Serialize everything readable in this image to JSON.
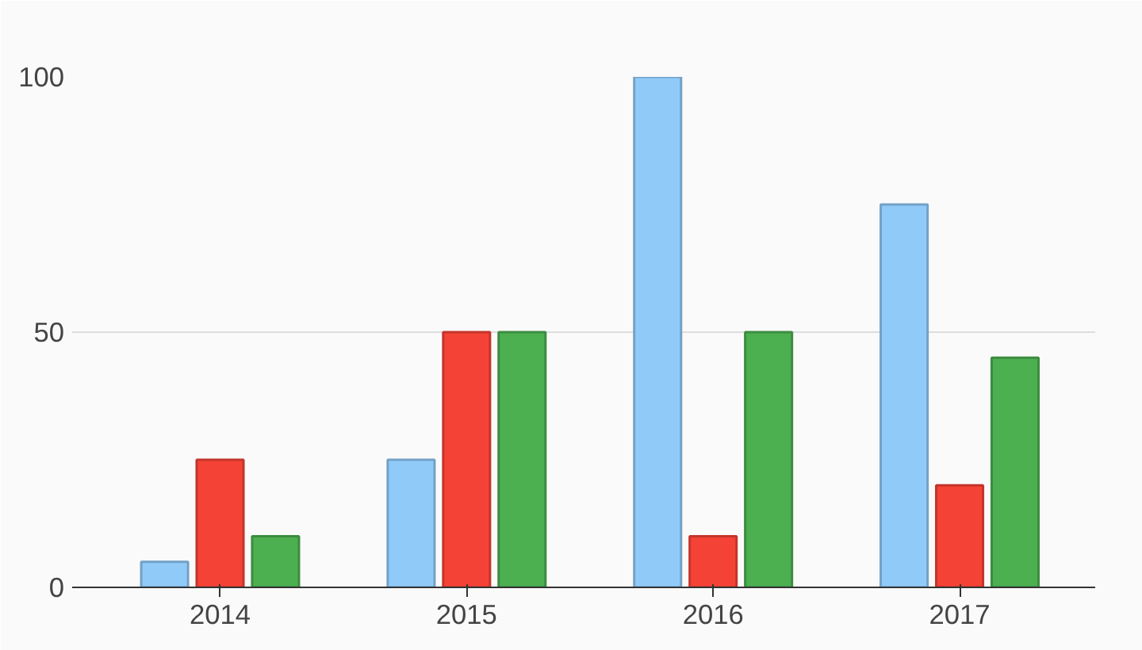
{
  "chart_data": {
    "type": "bar",
    "categories": [
      "2014",
      "2015",
      "2016",
      "2017"
    ],
    "series": [
      {
        "color": "#90caf9",
        "values": [
          5,
          25,
          100,
          75
        ]
      },
      {
        "color": "#f44336",
        "values": [
          25,
          50,
          10,
          20
        ]
      },
      {
        "color": "#4caf50",
        "values": [
          10,
          50,
          50,
          45
        ]
      }
    ],
    "ylim": [
      0,
      100
    ],
    "yticks": [
      0,
      50,
      100
    ],
    "grid": "y"
  }
}
